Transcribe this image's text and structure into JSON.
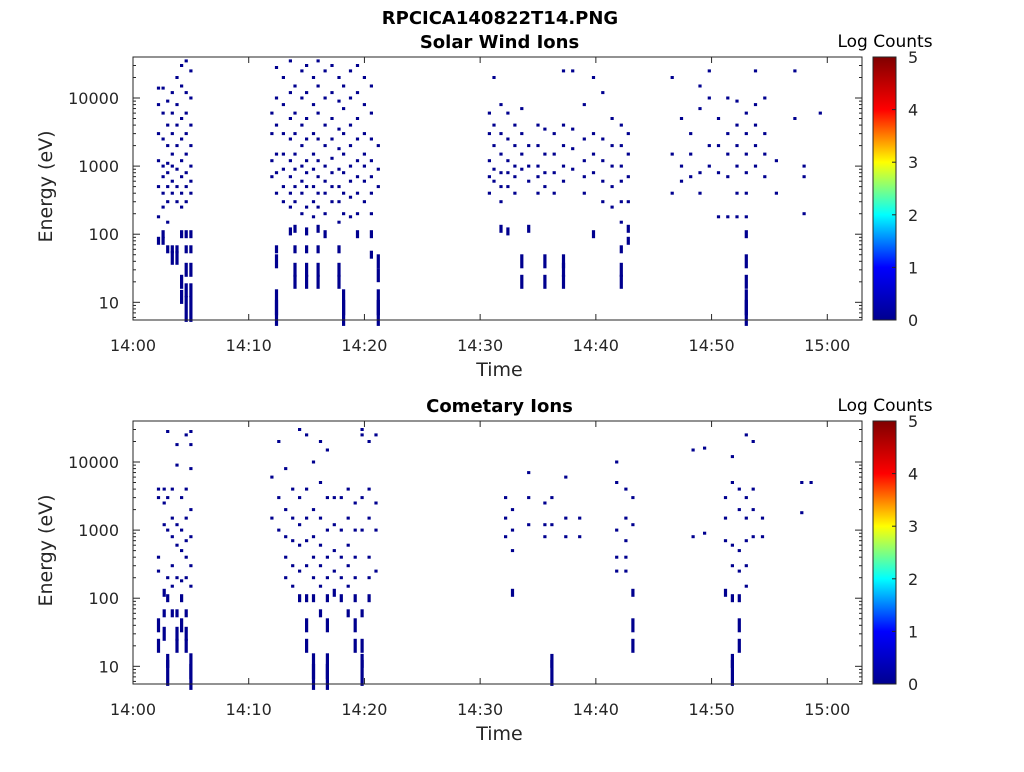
{
  "page_title": "RPCICA140822T14.PNG",
  "colors": {
    "event_color": "#00008f",
    "frame_color": "#262626",
    "colormap": [
      "#00008f",
      "#0000ff",
      "#00ffff",
      "#ffff00",
      "#ff0000",
      "#800000"
    ]
  },
  "chart_data": [
    {
      "type": "heatmap",
      "title": "Solar Wind Ions",
      "xlabel": "Time",
      "ylabel": "Energy (eV)",
      "xticks": [
        "14:00",
        "14:10",
        "14:20",
        "14:30",
        "14:40",
        "14:50",
        "15:00"
      ],
      "xlim_minutes": [
        0,
        63
      ],
      "yticks": [
        "10",
        "100",
        "1000",
        "10000"
      ],
      "yscale": "log",
      "ylim": [
        5.5,
        40000
      ],
      "colorbar": {
        "label": "Log Counts",
        "ticks": [
          "0",
          "1",
          "2",
          "3",
          "4",
          "5"
        ],
        "range": [
          0,
          5
        ]
      },
      "value_note": "all visible events ~0 log counts (dark blue)",
      "columns": [
        {
          "t": 2.2,
          "e": [
            14000,
            8000,
            3000,
            1200,
            500,
            180,
            80
          ]
        },
        {
          "t": 2.6,
          "e": [
            14000,
            6000,
            2500,
            1000,
            700,
            400,
            250,
            100,
            80
          ]
        },
        {
          "t": 3.0,
          "e": [
            9000,
            4000,
            2000,
            1100,
            800,
            500,
            300,
            150,
            60
          ]
        },
        {
          "t": 3.4,
          "e": [
            12000,
            6000,
            3000,
            1500,
            1000,
            600,
            400,
            60,
            45
          ]
        },
        {
          "t": 3.8,
          "e": [
            20000,
            8000,
            4000,
            2000,
            900,
            500,
            300,
            60,
            45
          ]
        },
        {
          "t": 4.2,
          "e": [
            30000,
            15000,
            5000,
            2500,
            1200,
            700,
            400,
            250,
            100,
            20,
            12
          ]
        },
        {
          "t": 4.6,
          "e": [
            35000,
            12000,
            6000,
            3000,
            1500,
            800,
            500,
            300,
            100,
            60,
            30,
            15,
            8
          ]
        },
        {
          "t": 5.0,
          "e": [
            25000,
            10000,
            4000,
            2000,
            1000,
            600,
            400,
            100,
            60,
            30,
            15,
            8
          ]
        },
        {
          "t": 12.0,
          "e": [
            6000,
            3000,
            1200,
            700
          ]
        },
        {
          "t": 12.4,
          "e": [
            28000,
            10000,
            4000,
            1500,
            800,
            400,
            60,
            40,
            10,
            7
          ]
        },
        {
          "t": 13.0,
          "e": [
            20000,
            8000,
            3000,
            1500,
            900,
            500,
            300
          ]
        },
        {
          "t": 13.6,
          "e": [
            35000,
            12000,
            5000,
            2500,
            1200,
            700,
            400,
            250,
            110
          ]
        },
        {
          "t": 14.0,
          "e": [
            15000,
            6000,
            3000,
            1500,
            900,
            500,
            300,
            120,
            60,
            30,
            20
          ]
        },
        {
          "t": 14.6,
          "e": [
            25000,
            10000,
            4000,
            2000,
            1000,
            600,
            400,
            200
          ]
        },
        {
          "t": 15.0,
          "e": [
            30000,
            12000,
            5000,
            2500,
            1200,
            800,
            500,
            250,
            110,
            60,
            30,
            20
          ]
        },
        {
          "t": 15.6,
          "e": [
            20000,
            8000,
            3000,
            1500,
            900,
            500,
            300,
            180
          ]
        },
        {
          "t": 16.0,
          "e": [
            35000,
            15000,
            6000,
            2500,
            1200,
            700,
            400,
            250,
            120,
            60,
            30,
            20
          ]
        },
        {
          "t": 16.6,
          "e": [
            25000,
            10000,
            4000,
            2000,
            1000,
            600,
            400,
            200,
            100
          ]
        },
        {
          "t": 17.2,
          "e": [
            30000,
            12000,
            5000,
            2500,
            1300,
            800,
            500,
            300
          ]
        },
        {
          "t": 17.8,
          "e": [
            20000,
            9000,
            3500,
            1800,
            900,
            500,
            300,
            150,
            60,
            30,
            20
          ]
        },
        {
          "t": 18.2,
          "e": [
            15000,
            7000,
            3000,
            1500,
            800,
            400,
            200,
            10,
            7
          ]
        },
        {
          "t": 18.8,
          "e": [
            25000,
            10000,
            4000,
            2000,
            1000,
            600,
            350,
            180
          ]
        },
        {
          "t": 19.4,
          "e": [
            30000,
            12000,
            5000,
            2500,
            1200,
            700,
            400,
            200,
            100
          ]
        },
        {
          "t": 20.0,
          "e": [
            20000,
            8000,
            3000,
            1500,
            1000,
            600,
            300
          ]
        },
        {
          "t": 20.6,
          "e": [
            15000,
            6000,
            2500,
            1200,
            700,
            400,
            200,
            100,
            50
          ]
        },
        {
          "t": 21.2,
          "e": [
            2000,
            900,
            500,
            40,
            25,
            10,
            7
          ]
        },
        {
          "t": 30.8,
          "e": [
            6000,
            3000,
            1200,
            700,
            400
          ]
        },
        {
          "t": 31.2,
          "e": [
            20000,
            4000,
            2000,
            900,
            600
          ]
        },
        {
          "t": 31.8,
          "e": [
            8000,
            3000,
            1500,
            800,
            500,
            300,
            120
          ]
        },
        {
          "t": 32.4,
          "e": [
            6000,
            2500,
            1200,
            800,
            500,
            110
          ]
        },
        {
          "t": 33.0,
          "e": [
            4000,
            2000,
            1000,
            700,
            400
          ]
        },
        {
          "t": 33.6,
          "e": [
            7000,
            3000,
            1500,
            900,
            40,
            20
          ]
        },
        {
          "t": 34.2,
          "e": [
            2000,
            1000,
            600,
            120
          ]
        },
        {
          "t": 35.0,
          "e": [
            4000,
            2000,
            1000,
            700,
            400
          ]
        },
        {
          "t": 35.6,
          "e": [
            3500,
            1500,
            800,
            500,
            40,
            20
          ]
        },
        {
          "t": 36.4,
          "e": [
            3000,
            1500,
            800,
            400
          ]
        },
        {
          "t": 37.2,
          "e": [
            25000,
            4000,
            2000,
            1000,
            600,
            40,
            30,
            20
          ]
        },
        {
          "t": 38.0,
          "e": [
            25000,
            3500,
            1800,
            900
          ]
        },
        {
          "t": 39.0,
          "e": [
            8000,
            2500,
            1200,
            700,
            400
          ]
        },
        {
          "t": 39.8,
          "e": [
            20000,
            3000,
            1500,
            800,
            100
          ]
        },
        {
          "t": 40.6,
          "e": [
            12000,
            2500,
            1200,
            600,
            300
          ]
        },
        {
          "t": 41.4,
          "e": [
            5000,
            2000,
            1000,
            500,
            250
          ]
        },
        {
          "t": 42.2,
          "e": [
            4000,
            2000,
            1000,
            600,
            300,
            150,
            60,
            30,
            20
          ]
        },
        {
          "t": 42.8,
          "e": [
            3000,
            1500,
            700,
            300,
            120,
            80
          ]
        },
        {
          "t": 46.6,
          "e": [
            20000,
            1500,
            400
          ]
        },
        {
          "t": 47.4,
          "e": [
            5000,
            1000,
            600
          ]
        },
        {
          "t": 48.2,
          "e": [
            3000,
            1500,
            700
          ]
        },
        {
          "t": 49.0,
          "e": [
            15000,
            7000,
            800,
            400
          ]
        },
        {
          "t": 49.8,
          "e": [
            25000,
            10000,
            2000,
            1000
          ]
        },
        {
          "t": 50.6,
          "e": [
            5000,
            2000,
            800,
            180
          ]
        },
        {
          "t": 51.4,
          "e": [
            10000,
            3000,
            1500,
            700,
            180
          ]
        },
        {
          "t": 52.2,
          "e": [
            9000,
            4000,
            2000,
            1000,
            400,
            180
          ]
        },
        {
          "t": 53.0,
          "e": [
            6000,
            3000,
            1500,
            800,
            400,
            180,
            100,
            40,
            20,
            10,
            7
          ]
        },
        {
          "t": 53.8,
          "e": [
            25000,
            8000,
            4000,
            2000,
            1000
          ]
        },
        {
          "t": 54.6,
          "e": [
            10000,
            3000,
            1500,
            700
          ]
        },
        {
          "t": 55.6,
          "e": [
            1200,
            400
          ]
        },
        {
          "t": 57.2,
          "e": [
            25000,
            5000
          ]
        },
        {
          "t": 58.0,
          "e": [
            1000,
            700,
            200
          ]
        },
        {
          "t": 59.4,
          "e": [
            6000
          ]
        }
      ]
    },
    {
      "type": "heatmap",
      "title": "Cometary Ions",
      "xlabel": "Time",
      "ylabel": "Energy (eV)",
      "xticks": [
        "14:00",
        "14:10",
        "14:20",
        "14:30",
        "14:40",
        "14:50",
        "15:00"
      ],
      "xlim_minutes": [
        0,
        63
      ],
      "yticks": [
        "10",
        "100",
        "1000",
        "10000"
      ],
      "yscale": "log",
      "ylim": [
        5.5,
        40000
      ],
      "colorbar": {
        "label": "Log Counts",
        "ticks": [
          "0",
          "1",
          "2",
          "3",
          "4",
          "5"
        ],
        "range": [
          0,
          5
        ]
      },
      "value_note": "all visible events ~0 log counts (dark blue)",
      "columns": [
        {
          "t": 2.2,
          "e": [
            4000,
            3000,
            400,
            250,
            40,
            20
          ]
        },
        {
          "t": 2.7,
          "e": [
            4000,
            2500,
            1200,
            120,
            60,
            30
          ]
        },
        {
          "t": 3.0,
          "e": [
            28000,
            3000,
            1000,
            200,
            100,
            12,
            8
          ]
        },
        {
          "t": 3.4,
          "e": [
            4000,
            1500,
            800,
            300,
            150,
            60
          ]
        },
        {
          "t": 3.8,
          "e": [
            18000,
            9000,
            1200,
            600,
            200,
            60,
            30,
            20
          ]
        },
        {
          "t": 4.2,
          "e": [
            3000,
            1000,
            500,
            180,
            100,
            40
          ]
        },
        {
          "t": 4.6,
          "e": [
            25000,
            4000,
            1500,
            700,
            400,
            200,
            60,
            30,
            20
          ]
        },
        {
          "t": 5.0,
          "e": [
            28000,
            18000,
            8000,
            2000,
            800,
            300,
            150,
            10,
            7
          ]
        },
        {
          "t": 12.0,
          "e": [
            6000,
            1500
          ]
        },
        {
          "t": 12.6,
          "e": [
            20000,
            3000,
            1000
          ]
        },
        {
          "t": 13.2,
          "e": [
            8000,
            2000,
            800,
            400,
            200
          ]
        },
        {
          "t": 13.8,
          "e": [
            4000,
            1500,
            700,
            300,
            150
          ]
        },
        {
          "t": 14.4,
          "e": [
            30000,
            3000,
            1200,
            600,
            250,
            100
          ]
        },
        {
          "t": 15.0,
          "e": [
            25000,
            4000,
            1500,
            700,
            300,
            100,
            40,
            20
          ]
        },
        {
          "t": 15.6,
          "e": [
            10000,
            2000,
            800,
            400,
            200,
            100,
            10,
            7
          ]
        },
        {
          "t": 16.2,
          "e": [
            20000,
            5000,
            1500,
            600,
            300,
            150,
            60
          ]
        },
        {
          "t": 16.8,
          "e": [
            15000,
            3000,
            1000,
            400,
            200,
            100,
            40,
            10,
            7
          ]
        },
        {
          "t": 17.4,
          "e": [
            3000,
            1200,
            500,
            250,
            120
          ]
        },
        {
          "t": 18.0,
          "e": [
            3000,
            1000,
            400,
            200,
            100
          ]
        },
        {
          "t": 18.6,
          "e": [
            4000,
            1500,
            600,
            300,
            150,
            60
          ]
        },
        {
          "t": 19.2,
          "e": [
            2500,
            1000,
            400,
            200,
            100,
            40,
            20
          ]
        },
        {
          "t": 19.8,
          "e": [
            30000,
            25000,
            3000,
            1000,
            60,
            20,
            12,
            8
          ]
        },
        {
          "t": 20.4,
          "e": [
            20000,
            4000,
            1500,
            400,
            200,
            100
          ]
        },
        {
          "t": 21.0,
          "e": [
            25000,
            2500,
            1000,
            250
          ]
        },
        {
          "t": 32.2,
          "e": [
            3000,
            1500,
            800
          ]
        },
        {
          "t": 32.8,
          "e": [
            2000,
            1000,
            500,
            120
          ]
        },
        {
          "t": 34.2,
          "e": [
            7000,
            3000,
            1200
          ]
        },
        {
          "t": 35.6,
          "e": [
            2500,
            1200,
            800
          ]
        },
        {
          "t": 36.2,
          "e": [
            3000,
            1200,
            12,
            8
          ]
        },
        {
          "t": 37.4,
          "e": [
            6000,
            1500,
            800
          ]
        },
        {
          "t": 38.6,
          "e": [
            1500,
            800
          ]
        },
        {
          "t": 41.8,
          "e": [
            10000,
            5000,
            1000,
            400,
            250
          ]
        },
        {
          "t": 42.6,
          "e": [
            4000,
            1500,
            700,
            400,
            250
          ]
        },
        {
          "t": 43.2,
          "e": [
            3000,
            1200,
            120,
            40,
            20
          ]
        },
        {
          "t": 48.4,
          "e": [
            15000,
            800
          ]
        },
        {
          "t": 49.4,
          "e": [
            16000,
            900
          ]
        },
        {
          "t": 51.2,
          "e": [
            3000,
            1500,
            700,
            120
          ]
        },
        {
          "t": 51.8,
          "e": [
            12000,
            5000,
            600,
            300,
            100,
            12,
            8
          ]
        },
        {
          "t": 52.4,
          "e": [
            4000,
            2000,
            500,
            250,
            100,
            40,
            20
          ]
        },
        {
          "t": 53.0,
          "e": [
            25000,
            3000,
            1500,
            700,
            300,
            150
          ]
        },
        {
          "t": 53.6,
          "e": [
            20000,
            4000,
            2000,
            800
          ]
        },
        {
          "t": 54.4,
          "e": [
            1500,
            800
          ]
        },
        {
          "t": 57.8,
          "e": [
            5000,
            1800
          ]
        },
        {
          "t": 58.6,
          "e": [
            5000
          ]
        }
      ]
    }
  ]
}
